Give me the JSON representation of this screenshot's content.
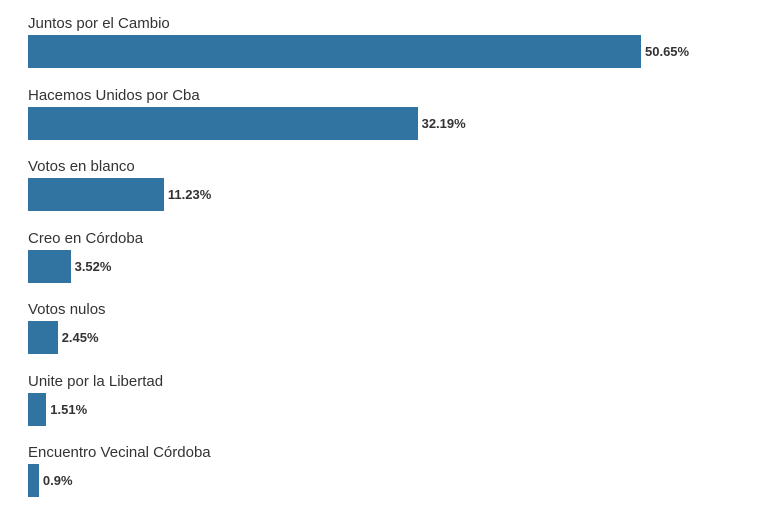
{
  "chart_data": {
    "type": "bar",
    "orientation": "horizontal",
    "categories": [
      "Juntos por el Cambio",
      "Hacemos Unidos por Cba",
      "Votos en blanco",
      "Creo en Córdoba",
      "Votos nulos",
      "Unite por la Libertad",
      "Encuentro Vecinal Córdoba"
    ],
    "values": [
      50.65,
      32.19,
      11.23,
      3.52,
      2.45,
      1.51,
      0.9
    ],
    "value_labels": [
      "50.65%",
      "32.19%",
      "11.23%",
      "3.52%",
      "2.45%",
      "1.51%",
      "0.9%"
    ],
    "title": "",
    "xlabel": "",
    "ylabel": "",
    "xlim": [
      0,
      50.65
    ],
    "grid": false,
    "legend": "none",
    "bar_color": "#3274a1"
  }
}
